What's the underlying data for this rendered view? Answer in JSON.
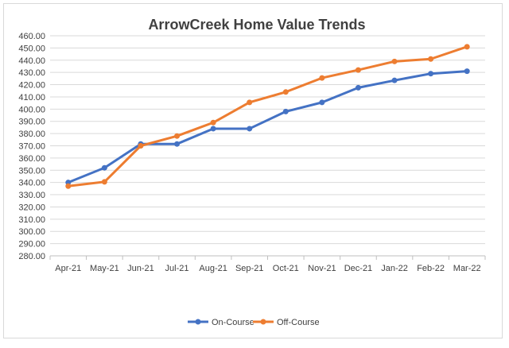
{
  "chart_data": {
    "type": "line",
    "title": "ArrowCreek Home Value Trends",
    "xlabel": "",
    "ylabel": "",
    "categories": [
      "Apr-21",
      "May-21",
      "Jun-21",
      "Jul-21",
      "Aug-21",
      "Sep-21",
      "Oct-21",
      "Nov-21",
      "Dec-21",
      "Jan-22",
      "Feb-22",
      "Mar-22"
    ],
    "ylim": [
      280,
      460
    ],
    "y_tick_step": 10,
    "y_tick_format_decimals": 2,
    "grid": true,
    "legend_position": "bottom",
    "series": [
      {
        "name": "On-Course",
        "color": "#4472C4",
        "values": [
          340,
          352,
          371.5,
          371.5,
          384,
          384,
          398,
          405.5,
          417.5,
          423.5,
          429,
          431
        ]
      },
      {
        "name": "Off-Course",
        "color": "#ED7D31",
        "values": [
          337,
          340.5,
          370,
          378,
          389,
          405.5,
          414,
          425.5,
          432,
          439,
          441,
          451
        ]
      }
    ]
  }
}
